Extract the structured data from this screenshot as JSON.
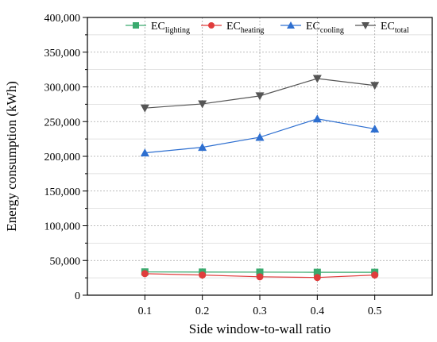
{
  "chart_data": {
    "type": "line",
    "xlabel": "Side window-to-wall ratio",
    "ylabel": "Energy consumption (kWh)",
    "x": [
      0.1,
      0.2,
      0.3,
      0.4,
      0.5
    ],
    "x_tick_labels": [
      "0.1",
      "0.2",
      "0.3",
      "0.4",
      "0.5"
    ],
    "xlim": [
      0.0,
      0.6
    ],
    "ylim": [
      0,
      400000
    ],
    "y_tick_labels": [
      "0",
      "50,000",
      "100,000",
      "150,000",
      "200,000",
      "250,000",
      "300,000",
      "350,000",
      "400,000"
    ],
    "grid": true,
    "legend_position": "top",
    "series": [
      {
        "base": "EC",
        "sub": "lighting",
        "color": "#3aaa6e",
        "marker": "square",
        "values": [
          33500,
          33300,
          33200,
          33000,
          33000
        ]
      },
      {
        "base": "EC",
        "sub": "heating",
        "color": "#e03c3c",
        "marker": "circle",
        "values": [
          31000,
          29000,
          26500,
          25500,
          29000
        ]
      },
      {
        "base": "EC",
        "sub": "cooling",
        "color": "#2e6fd0",
        "marker": "triangle-up",
        "values": [
          205000,
          213000,
          227500,
          254000,
          239500
        ]
      },
      {
        "base": "EC",
        "sub": "total",
        "color": "#555555",
        "marker": "triangle-down",
        "values": [
          269500,
          275500,
          287000,
          312000,
          302000
        ]
      }
    ]
  }
}
